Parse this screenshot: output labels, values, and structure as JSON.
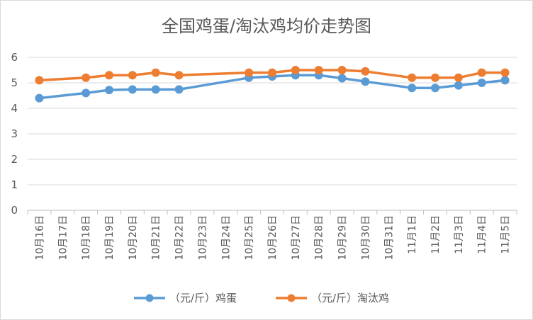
{
  "chart_data": {
    "type": "line",
    "title": "全国鸡蛋/淘汰鸡均价走势图",
    "xlabel": "",
    "ylabel": "",
    "ylim": [
      0,
      6
    ],
    "yticks": [
      0,
      1,
      2,
      3,
      4,
      5,
      6
    ],
    "grid": true,
    "legend_position": "bottom",
    "categories": [
      "10月16日",
      "10月17日",
      "10月18日",
      "10月19日",
      "10月20日",
      "10月21日",
      "10月22日",
      "10月23日",
      "10月24日",
      "10月25日",
      "10月26日",
      "10月27日",
      "10月28日",
      "10月29日",
      "10月30日",
      "10月31日",
      "11月1日",
      "11月2日",
      "11月3日",
      "11月4日",
      "11月5日"
    ],
    "series": [
      {
        "name": "（元/斤）鸡蛋",
        "color": "#5b9bd5",
        "values": [
          4.4,
          null,
          4.6,
          4.72,
          4.74,
          4.74,
          4.74,
          null,
          null,
          5.2,
          5.25,
          5.3,
          5.3,
          5.18,
          5.05,
          null,
          4.8,
          4.8,
          4.9,
          5.0,
          5.1
        ]
      },
      {
        "name": "（元/斤）淘汰鸡",
        "color": "#ed7d31",
        "values": [
          5.1,
          null,
          5.2,
          5.3,
          5.3,
          5.4,
          5.3,
          null,
          null,
          5.4,
          5.4,
          5.5,
          5.5,
          5.5,
          5.45,
          null,
          5.2,
          5.2,
          5.2,
          5.4,
          5.4
        ]
      }
    ]
  }
}
